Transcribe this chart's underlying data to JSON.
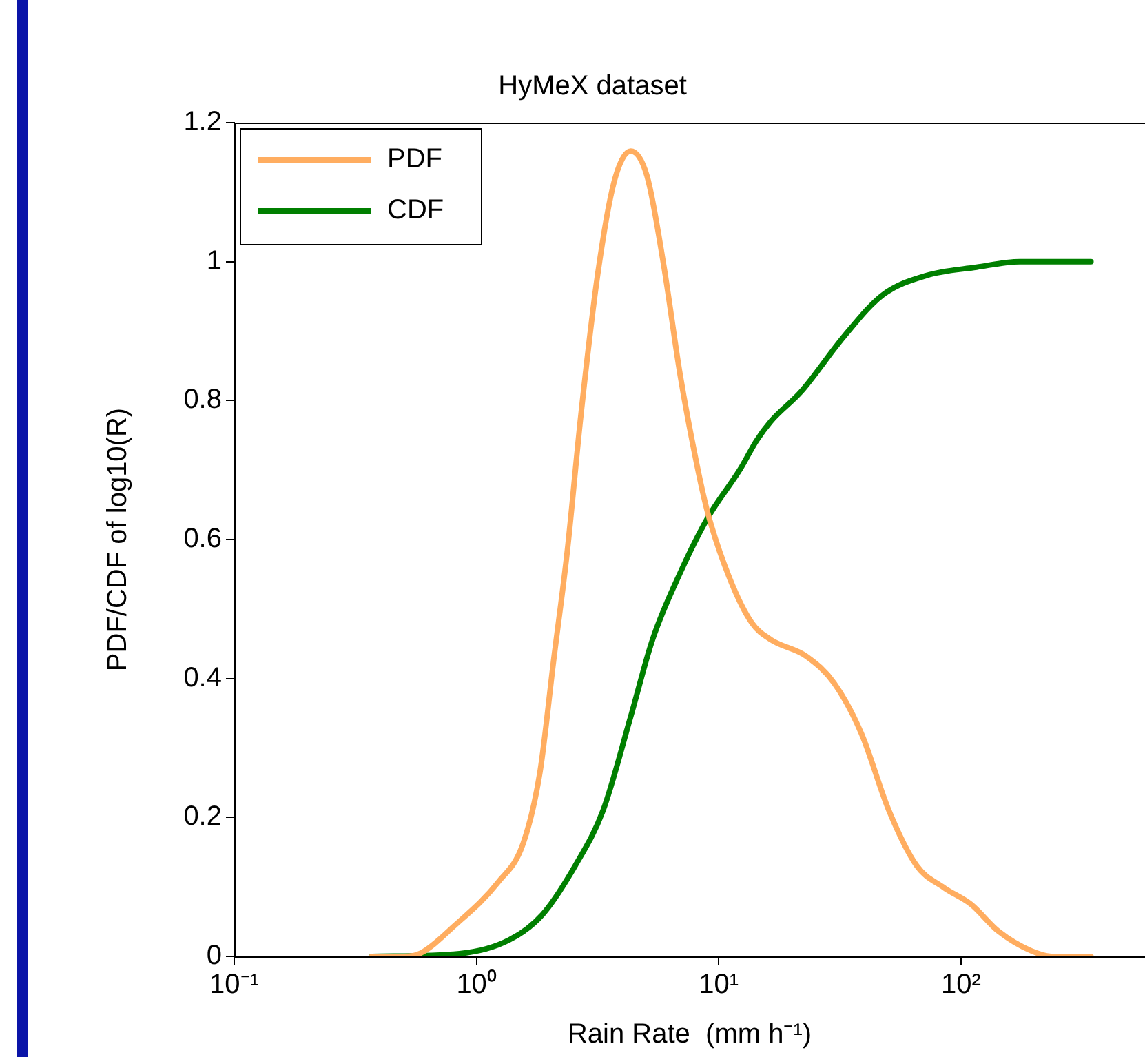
{
  "chart_data": {
    "type": "line",
    "title": "HyMeX dataset",
    "xlabel": "Rain Rate  (mm h⁻¹)",
    "ylabel": "PDF/CDF of log10(R)",
    "log": "x",
    "xlim": [
      0.1,
      575
    ],
    "xticks": [
      {
        "value": 0.1,
        "label": "10⁻¹"
      },
      {
        "value": 1,
        "label": "10⁰"
      },
      {
        "value": 10,
        "label": "10¹"
      },
      {
        "value": 100,
        "label": "10²"
      }
    ],
    "ylim": [
      0,
      1.2
    ],
    "yticks": [
      0,
      0.2,
      0.4,
      0.6,
      0.8,
      1,
      1.2
    ],
    "legend": "top left",
    "line_style": "solid",
    "marker": "none",
    "series": [
      {
        "name": "PDF",
        "color": "#ffad60",
        "x": [
          0.37,
          0.5,
          0.59,
          0.81,
          1.23,
          1.56,
          1.83,
          2.08,
          2.37,
          2.7,
          3.16,
          3.7,
          4.33,
          5.06,
          5.92,
          6.93,
          8.1,
          9.0,
          11.1,
          13.7,
          16.4,
          23,
          30,
          38.8,
          50.4,
          65.5,
          85,
          110,
          143,
          195,
          240,
          344
        ],
        "values": [
          0,
          0,
          0.005,
          0.044,
          0.107,
          0.163,
          0.266,
          0.425,
          0.583,
          0.78,
          0.98,
          1.115,
          1.159,
          1.123,
          0.996,
          0.837,
          0.71,
          0.639,
          0.544,
          0.48,
          0.456,
          0.432,
          0.393,
          0.321,
          0.21,
          0.131,
          0.099,
          0.075,
          0.036,
          0.008,
          0,
          0
        ]
      },
      {
        "name": "CDF",
        "color": "#007f00",
        "x": [
          0.37,
          0.85,
          1.37,
          1.87,
          2.56,
          3.33,
          4.33,
          5.33,
          6.93,
          9.0,
          12.3,
          14.3,
          16.4,
          21.9,
          33,
          47.5,
          72,
          116,
          175,
          344
        ],
        "values": [
          0,
          0.004,
          0.024,
          0.06,
          0.131,
          0.21,
          0.345,
          0.456,
          0.552,
          0.631,
          0.702,
          0.742,
          0.77,
          0.813,
          0.893,
          0.952,
          0.98,
          0.992,
          1.0,
          1.0
        ]
      }
    ]
  }
}
